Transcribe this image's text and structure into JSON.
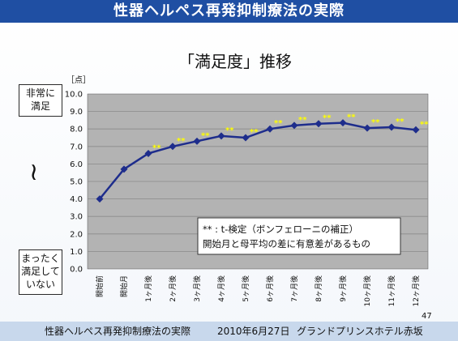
{
  "header": {
    "title": "性器ヘルペス再発抑制療法の実際"
  },
  "side": {
    "top_label": [
      "非常に",
      "満足"
    ],
    "bottom_label": [
      "まったく",
      "満足して",
      "いない"
    ],
    "tilde": "≀"
  },
  "legend_box": {
    "line1": "** : t-検定（ボンフェローニの補正）",
    "line2": "開始月と母平均の差に有意差があるもの"
  },
  "page_number": "47",
  "footer": {
    "title": "性器ヘルペス再発抑制療法の実際",
    "date": "2010年6月27日",
    "venue": "グランドプリンスホテル赤坂"
  },
  "chart_data": {
    "type": "line",
    "title": "「満足度」推移",
    "ylabel": "［点］",
    "ylim": [
      0,
      10
    ],
    "yticks": [
      "0.0",
      "1.0",
      "2.0",
      "3.0",
      "4.0",
      "5.0",
      "6.0",
      "7.0",
      "8.0",
      "9.0",
      "10.0"
    ],
    "categories": [
      "開始前",
      "開始月",
      "1ヶ月後",
      "2ヶ月後",
      "3ヶ月後",
      "4ヶ月後",
      "5ヶ月後",
      "6ヶ月後",
      "7ヶ月後",
      "8ヶ月後",
      "9ヶ月後",
      "10ヶ月後",
      "11ヶ月後",
      "12ヶ月後"
    ],
    "values": [
      4.0,
      5.7,
      6.6,
      7.0,
      7.3,
      7.6,
      7.5,
      8.0,
      8.2,
      8.3,
      8.35,
      8.05,
      8.1,
      7.95
    ],
    "significance_marker": "**",
    "significant": [
      false,
      false,
      true,
      true,
      true,
      true,
      true,
      true,
      true,
      true,
      true,
      true,
      true,
      true
    ],
    "grid": true,
    "colors": {
      "plot_bg": "#b3b3b3",
      "line": "#1e2d8c",
      "marker": "#1e2d8c",
      "sig": "#ffff00"
    }
  }
}
